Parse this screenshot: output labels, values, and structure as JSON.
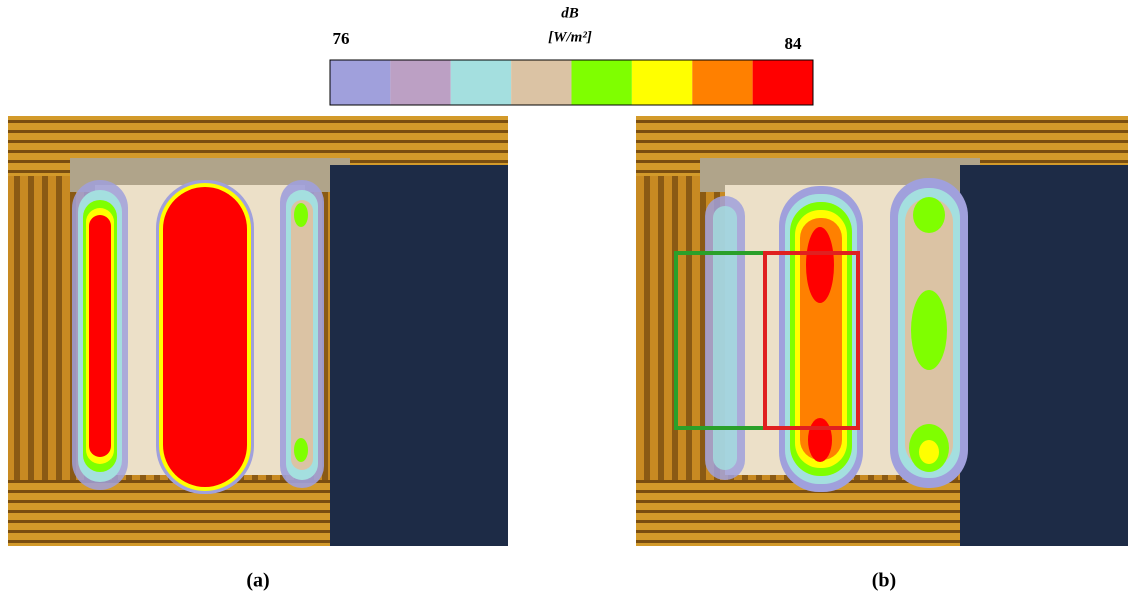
{
  "colorbar": {
    "title": "dB",
    "unit": "[W/m²]",
    "min_label": "76",
    "max_label": "84",
    "colors": [
      "#a0a0dc",
      "#bca0c4",
      "#a4dfdf",
      "#dbc3a4",
      "#7fff00",
      "#ffff00",
      "#ff8000",
      "#ff0000"
    ]
  },
  "panels": [
    {
      "caption": "(a)"
    },
    {
      "caption": "(b)"
    }
  ]
}
